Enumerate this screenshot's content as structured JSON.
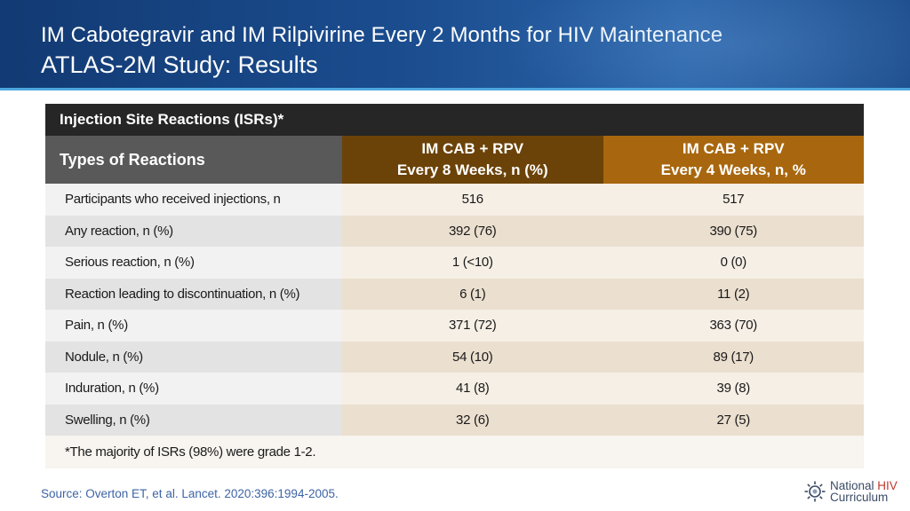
{
  "header": {
    "line1": "IM Cabotegravir and IM Rilpivirine Every 2 Months for HIV Maintenance",
    "line2": "ATLAS-2M Study: Results"
  },
  "table": {
    "title": "Injection Site Reactions (ISRs)*",
    "col_types": "Types of Reactions",
    "col1_line1": "IM CAB + RPV",
    "col1_line2": "Every 8 Weeks, n (%)",
    "col2_line1": "IM CAB + RPV",
    "col2_line2": "Every 4 Weeks, n, %",
    "rows": [
      {
        "label": "Participants who received injections, n",
        "q8w": "516",
        "q4w": "517"
      },
      {
        "label": "Any reaction, n (%)",
        "q8w": "392 (76)",
        "q4w": "390 (75)"
      },
      {
        "label": "Serious reaction, n (%)",
        "q8w": "1 (<10)",
        "q4w": "0 (0)"
      },
      {
        "label": "Reaction leading to discontinuation, n (%)",
        "q8w": "6 (1)",
        "q4w": "11 (2)"
      },
      {
        "label": "Pain, n (%)",
        "q8w": "371 (72)",
        "q4w": "363 (70)"
      },
      {
        "label": "Nodule, n (%)",
        "q8w": "54 (10)",
        "q4w": "89 (17)"
      },
      {
        "label": "Induration, n (%)",
        "q8w": "41 (8)",
        "q4w": "39 (8)"
      },
      {
        "label": "Swelling, n (%)",
        "q8w": "32 (6)",
        "q4w": "27 (5)"
      }
    ],
    "footnote": "*The majority of ISRs (98%) were grade 1-2."
  },
  "source": "Source: Overton ET, et al. Lancet. 2020:396:1994-2005.",
  "logo": {
    "word1": "National",
    "word2": "HIV",
    "word3": "Curriculum",
    "icon": "gear-network-icon"
  }
}
